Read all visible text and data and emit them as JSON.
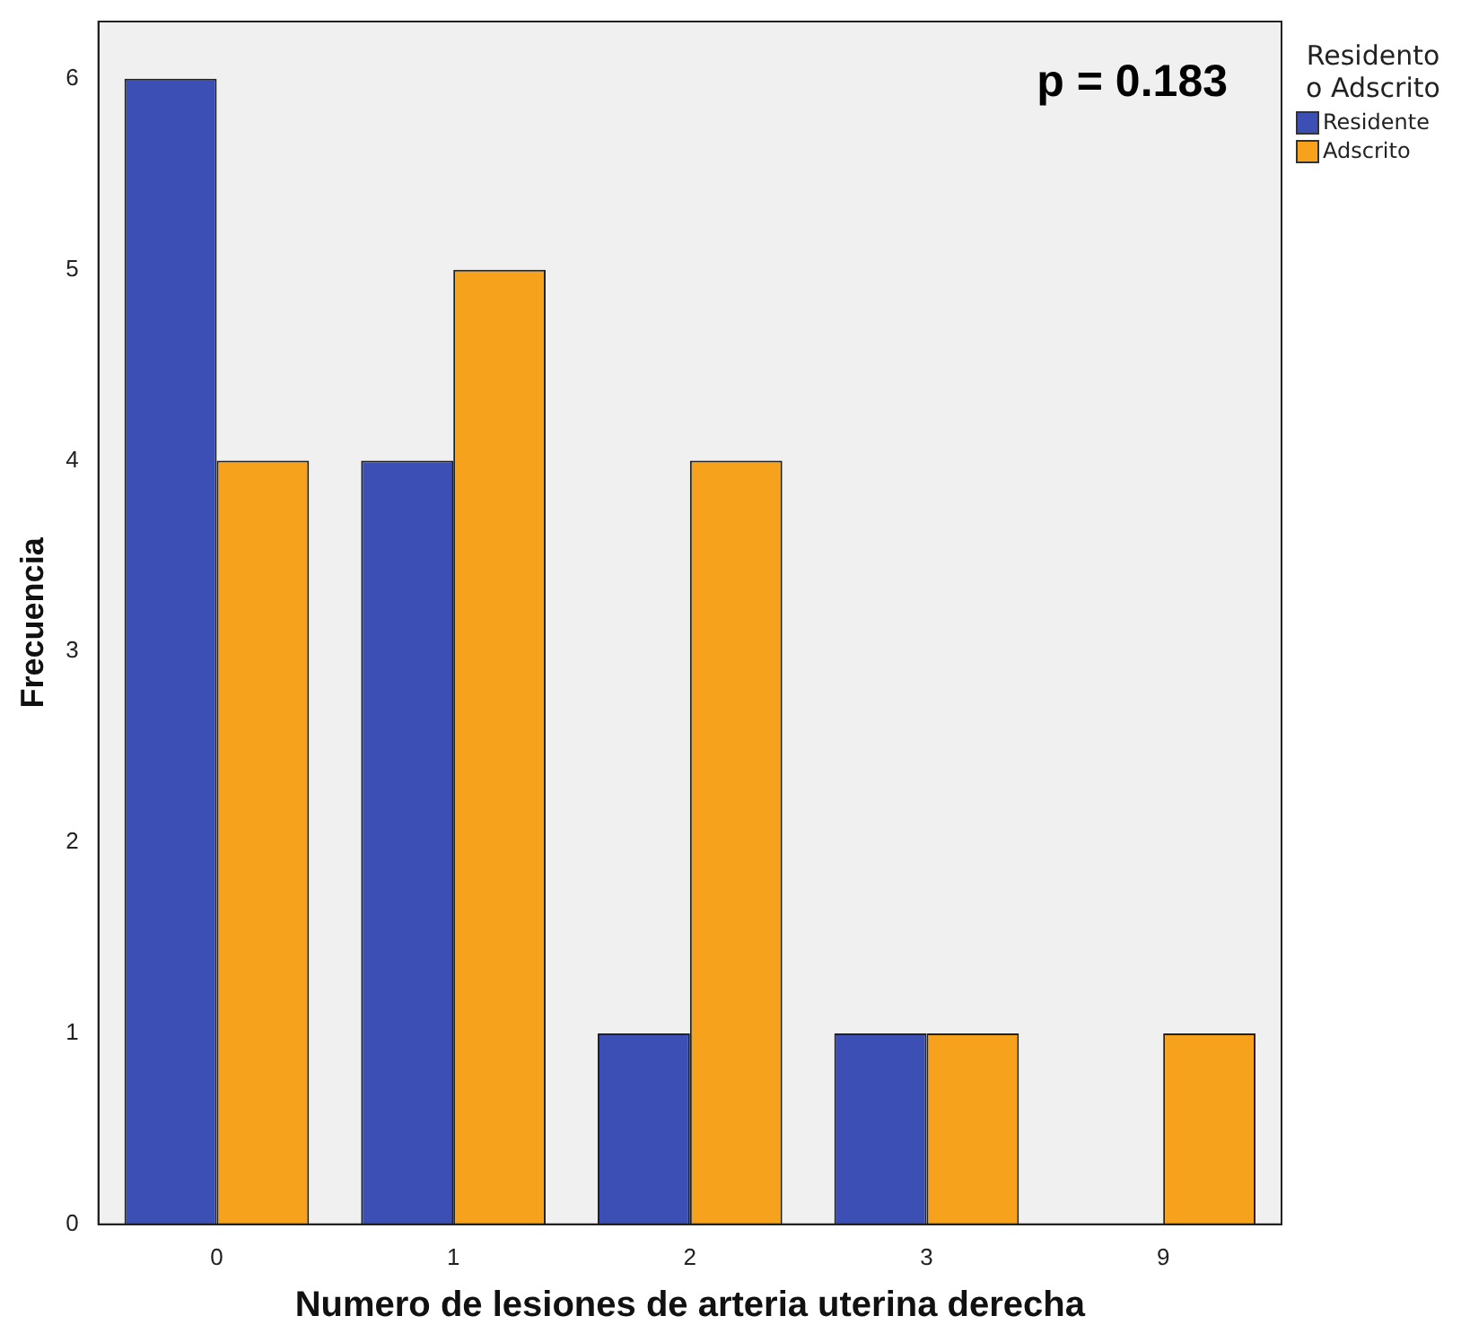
{
  "chart_data": {
    "type": "bar",
    "xlabel": "Numero de lesiones de arteria uterina derecha",
    "ylabel": "Frecuencia",
    "legend_title": "Residento o Adscrito",
    "categories": [
      "0",
      "1",
      "2",
      "3",
      "9"
    ],
    "series": [
      {
        "name": "Residente",
        "color": "#3c4fb4",
        "values": [
          6,
          4,
          1,
          1,
          0
        ]
      },
      {
        "name": "Adscrito",
        "color": "#f7a21c",
        "values": [
          4,
          5,
          4,
          1,
          1
        ]
      }
    ],
    "ylim": [
      0,
      6.3
    ],
    "yticks": [
      0,
      1,
      2,
      3,
      4,
      5,
      6
    ],
    "grid": false,
    "legend": "top right",
    "annotations": [
      "p = 0.183"
    ]
  }
}
